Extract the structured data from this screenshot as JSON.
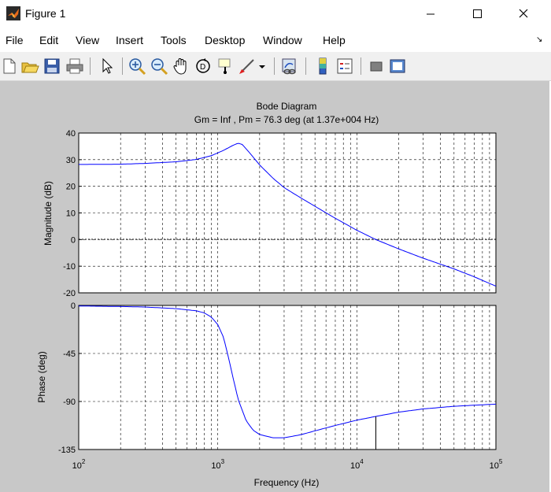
{
  "window": {
    "title": "Figure 1"
  },
  "menu": [
    "File",
    "Edit",
    "View",
    "Insert",
    "Tools",
    "Desktop",
    "Window",
    "Help"
  ],
  "toolbar": [
    "new-figure-icon",
    "open-file-icon",
    "save-icon",
    "print-icon",
    "pointer-icon",
    "zoom-in-icon",
    "zoom-out-icon",
    "pan-icon",
    "rotate-3d-icon",
    "data-cursor-icon",
    "brush-icon",
    "brush-dropdown-icon",
    "link-plot-icon",
    "colorbar-icon",
    "legend-icon",
    "hide-plot-tools-icon",
    "show-plot-tools-icon"
  ],
  "chart_data": {
    "type": "line",
    "title": "Bode Diagram",
    "subtitle": "Gm = Inf ,  Pm = 76.3 deg (at 1.37e+004 Hz)",
    "xlabel": "Frequency  (Hz)",
    "xscale": "log",
    "xlim": [
      100,
      100000
    ],
    "x_tick_labels": [
      {
        "base": "10",
        "exp": "2"
      },
      {
        "base": "10",
        "exp": "3"
      },
      {
        "base": "10",
        "exp": "4"
      },
      {
        "base": "10",
        "exp": "5"
      }
    ],
    "grid": true,
    "line_color": "#0000ff",
    "magnitude": {
      "ylabel": "Magnitude (dB)",
      "ylim": [
        -20,
        40
      ],
      "yticks": [
        "40",
        "30",
        "20",
        "10",
        "0",
        "-10",
        "-20"
      ],
      "x": [
        100,
        200,
        300,
        500,
        700,
        900,
        1100,
        1300,
        1400,
        1500,
        1700,
        2000,
        2500,
        3000,
        4000,
        5000,
        7000,
        10000,
        13700,
        20000,
        30000,
        50000,
        70000,
        100000
      ],
      "y": [
        28.2,
        28.3,
        28.6,
        29.2,
        30.1,
        31.5,
        33.5,
        35.5,
        36.2,
        35.7,
        32.5,
        28.0,
        23.0,
        19.5,
        15.5,
        12.5,
        8.0,
        3.5,
        0.0,
        -3.5,
        -7.0,
        -11.0,
        -14.0,
        -17.5
      ]
    },
    "phase": {
      "ylabel": "Phase (deg)",
      "ylim": [
        -135,
        0
      ],
      "yticks": [
        "0",
        "-45",
        "-90",
        "-135"
      ],
      "x": [
        100,
        200,
        300,
        500,
        700,
        800,
        900,
        1000,
        1100,
        1200,
        1300,
        1400,
        1600,
        1800,
        2000,
        2500,
        3000,
        3500,
        4000,
        5000,
        7000,
        10000,
        13700,
        20000,
        30000,
        50000,
        70000,
        100000
      ],
      "y": [
        -0.5,
        -1.0,
        -1.5,
        -3.0,
        -5.0,
        -7.0,
        -11.0,
        -18.0,
        -30.0,
        -50.0,
        -70.0,
        -88.0,
        -108.0,
        -117.0,
        -121.0,
        -124.0,
        -124.0,
        -122.5,
        -121.0,
        -117.5,
        -112.5,
        -107.5,
        -104.0,
        -100.0,
        -97.0,
        -94.5,
        -93.5,
        -92.5
      ]
    },
    "crossover_frequency": 13700
  }
}
